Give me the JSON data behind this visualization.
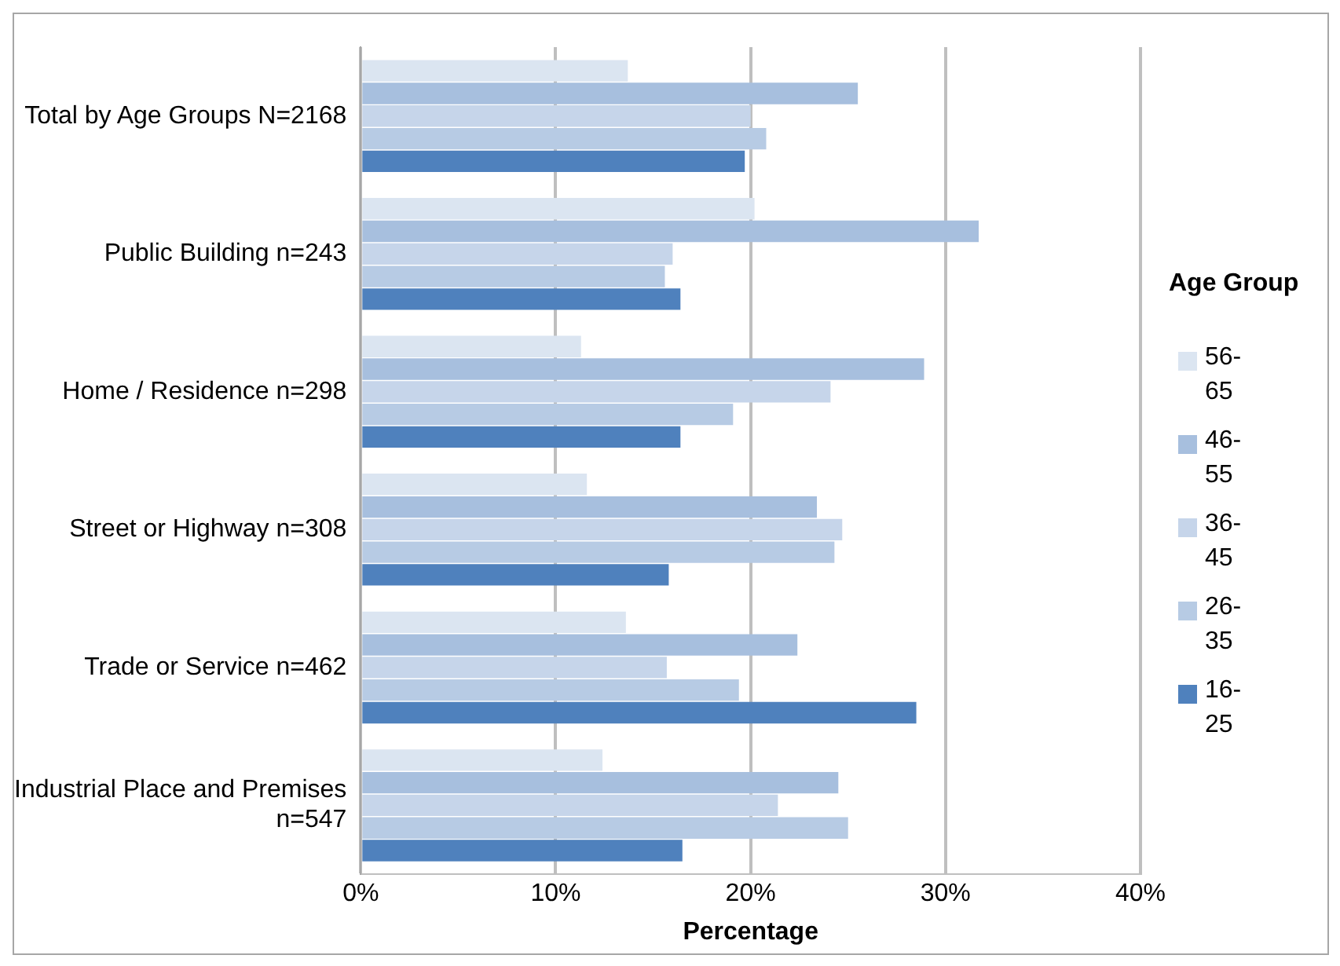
{
  "chart_data": {
    "type": "bar",
    "orientation": "horizontal",
    "xlabel": "Percentage",
    "legend_title": "Age Group",
    "legend": "right",
    "grid": "x",
    "categories": [
      "Total by Age Groups N=2168",
      "Public Building n=243",
      "Home / Residence n=298",
      "Street or Highway n=308",
      "Trade or Service n=462",
      "Industrial Place and Premises n=547"
    ],
    "series": [
      {
        "name": "56-65",
        "color": "#dbe5f1",
        "values": [
          13.7,
          20.2,
          11.3,
          11.6,
          13.6,
          12.4
        ]
      },
      {
        "name": "46-55",
        "color": "#a7bfde",
        "values": [
          25.5,
          31.7,
          28.9,
          23.4,
          22.4,
          24.5
        ]
      },
      {
        "name": "36-45",
        "color": "#c6d5ea",
        "values": [
          20.0,
          16.0,
          24.1,
          24.7,
          15.7,
          21.4
        ]
      },
      {
        "name": "26-35",
        "color": "#b7cbe4",
        "values": [
          20.8,
          15.6,
          19.1,
          24.3,
          19.4,
          25.0
        ]
      },
      {
        "name": "16-25",
        "color": "#4f81bd",
        "values": [
          19.7,
          16.4,
          16.4,
          15.8,
          28.5,
          16.5
        ]
      }
    ],
    "xlim": [
      0,
      40
    ],
    "xticks": [
      {
        "value": 0,
        "label": "0%"
      },
      {
        "value": 10,
        "label": "10%"
      },
      {
        "value": 20,
        "label": "20%"
      },
      {
        "value": 30,
        "label": "30%"
      },
      {
        "value": 40,
        "label": "40%"
      }
    ]
  }
}
